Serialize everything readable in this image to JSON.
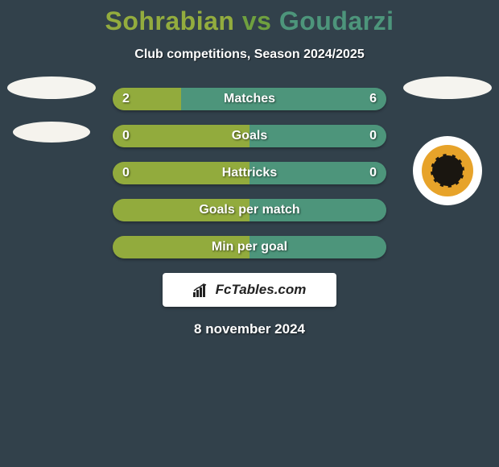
{
  "header": {
    "title_left": "Sohrabian",
    "title_vs": "vs",
    "title_right": "Goudarzi",
    "subtitle": "Club competitions, Season 2024/2025"
  },
  "colors": {
    "left_series": "#92ab3d",
    "right_series": "#4d957b",
    "background": "#32414b",
    "text": "#ffffff"
  },
  "bars": [
    {
      "label": "Matches",
      "left_val": "2",
      "right_val": "6",
      "left_pct": 25,
      "right_pct": 75
    },
    {
      "label": "Goals",
      "left_val": "0",
      "right_val": "0",
      "left_pct": 50,
      "right_pct": 50
    },
    {
      "label": "Hattricks",
      "left_val": "0",
      "right_val": "0",
      "left_pct": 50,
      "right_pct": 50
    },
    {
      "label": "Goals per match",
      "left_val": "",
      "right_val": "",
      "left_pct": 50,
      "right_pct": 50
    },
    {
      "label": "Min per goal",
      "left_val": "",
      "right_val": "",
      "left_pct": 50,
      "right_pct": 50
    }
  ],
  "watermark": {
    "text": "FcTables.com"
  },
  "date": "8 november 2024",
  "bar_style": {
    "height": 28,
    "border_radius": 14,
    "label_fontsize": 16,
    "container_width": 340
  }
}
